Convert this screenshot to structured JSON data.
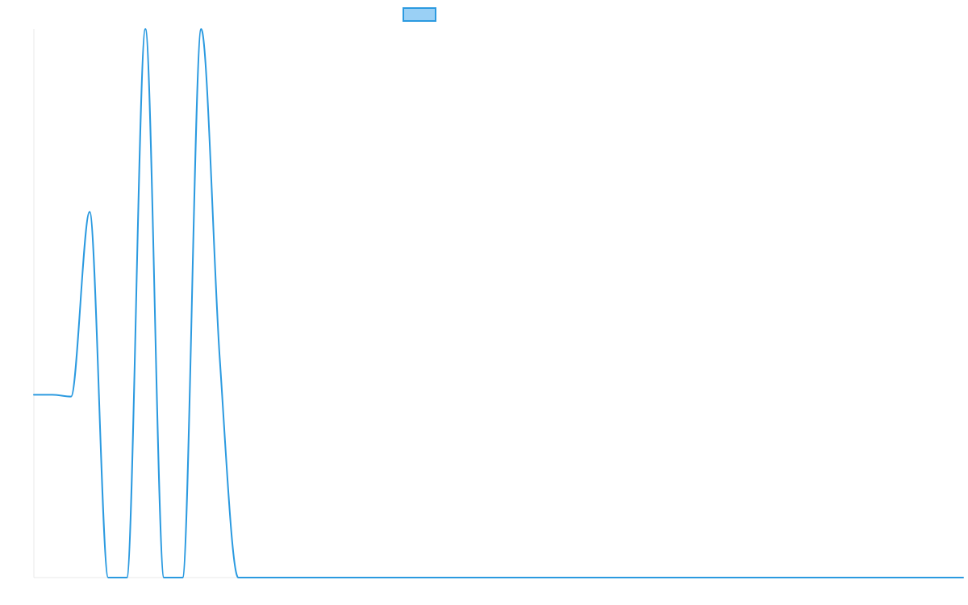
{
  "chart_data": {
    "type": "line",
    "title": "",
    "xlabel": "",
    "ylabel": "",
    "grid": false,
    "legend_placement": "top-center",
    "ylim": [
      0,
      3
    ],
    "x": [
      0,
      1,
      2,
      3,
      4,
      5,
      6,
      7,
      8,
      9,
      10,
      11,
      12,
      13,
      14,
      15,
      16,
      17,
      18,
      19,
      20,
      21,
      22,
      23,
      24,
      25,
      26,
      27,
      28,
      29,
      30,
      31,
      32,
      33,
      34,
      35,
      36,
      37,
      38,
      39,
      40,
      41,
      42,
      43,
      44,
      45,
      46,
      47,
      48,
      49,
      50
    ],
    "series": [
      {
        "name": "",
        "values": [
          1,
          1,
          0.99,
          2,
          0,
          0,
          3,
          0,
          0,
          3,
          1.2,
          0,
          0,
          0,
          0,
          0,
          0,
          0,
          0,
          0,
          0,
          0,
          0,
          0,
          0,
          0,
          0,
          0,
          0,
          0,
          0,
          0,
          0,
          0,
          0,
          0,
          0,
          0,
          0,
          0,
          0,
          0,
          0,
          0,
          0,
          0,
          0,
          0,
          0,
          0,
          0
        ]
      }
    ]
  },
  "style": {
    "line_color": "#2b9ae0",
    "legend_fill": "#9ad0f5",
    "axis_color": "#e8e8e8"
  }
}
